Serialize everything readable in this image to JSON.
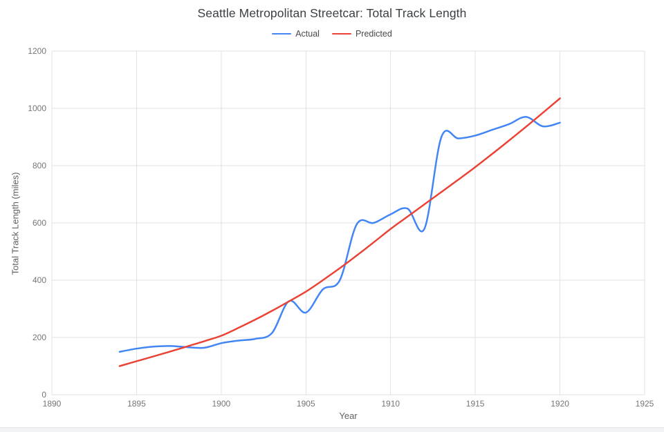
{
  "chart": {
    "title": "Seattle Metropolitan Streetcar: Total Track Length",
    "x_axis_title": "Year",
    "y_axis_title": "Total Track Length (miles)",
    "legend": [
      {
        "label": "Actual",
        "color": "#4285f4"
      },
      {
        "label": "Predicted",
        "color": "#ea4335"
      }
    ],
    "gridline_color": "#e2e2e2",
    "background_color": "#ffffff"
  },
  "chart_data": {
    "type": "line",
    "title": "Seattle Metropolitan Streetcar: Total Track Length",
    "xlabel": "Year",
    "ylabel": "Total Track Length (miles)",
    "x_range": [
      1890,
      1925
    ],
    "y_range": [
      0,
      1200
    ],
    "x_ticks": [
      1890,
      1895,
      1900,
      1905,
      1910,
      1915,
      1920,
      1925
    ],
    "y_ticks": [
      0,
      200,
      400,
      600,
      800,
      1000,
      1200
    ],
    "grid": true,
    "legend_position": "top-center",
    "line_style": "smooth",
    "x": [
      1894,
      1895,
      1896,
      1897,
      1898,
      1899,
      1900,
      1901,
      1902,
      1903,
      1904,
      1905,
      1906,
      1907,
      1908,
      1909,
      1910,
      1911,
      1912,
      1913,
      1914,
      1915,
      1916,
      1917,
      1918,
      1919,
      1920
    ],
    "series": [
      {
        "name": "Actual",
        "color": "#4285f4",
        "values": [
          150,
          161,
          168,
          170,
          166,
          164,
          180,
          189,
          195,
          216,
          327,
          287,
          368,
          400,
          595,
          600,
          630,
          650,
          580,
          900,
          895,
          905,
          925,
          945,
          970,
          937,
          950
        ]
      },
      {
        "name": "Predicted",
        "color": "#ea4335",
        "values": [
          100,
          117,
          134,
          151,
          169,
          187,
          206,
          233,
          262,
          293,
          326,
          360,
          400,
          442,
          486,
          532,
          579,
          622,
          665,
          708,
          751,
          795,
          841,
          888,
          936,
          985,
          1035
        ]
      }
    ]
  }
}
